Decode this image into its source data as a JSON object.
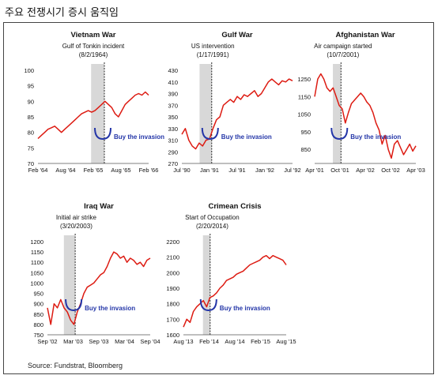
{
  "page_title": "주요 전쟁시기 증시 움직임",
  "source": "Source: Fundstrat, Bloomberg",
  "colors": {
    "line": "#dd1b12",
    "band": "#d8d8d8",
    "bracket": "#2436a8",
    "annotation_text": "#2436a8",
    "text": "#111111"
  },
  "chart_data": [
    {
      "type": "line",
      "title": "Vietnam War",
      "event": {
        "label": "Gulf of Tonkin incident",
        "date": "(8/2/1964)",
        "position": 0.5
      },
      "band": [
        0.48,
        0.6
      ],
      "annotation": "Buy the invasion",
      "y_ticks": [
        70,
        75,
        80,
        85,
        90,
        95,
        100
      ],
      "ylim": [
        70,
        100
      ],
      "x_tick_labels": [
        "Feb '64",
        "Aug '64",
        "Feb '65",
        "Aug '65",
        "Feb '66"
      ],
      "series_values": [
        78,
        79,
        80,
        81,
        81.5,
        82,
        81,
        80,
        81,
        82,
        83,
        84,
        85,
        86,
        86.5,
        87,
        86.5,
        87,
        88,
        89,
        90,
        89,
        88,
        86,
        85,
        87,
        89,
        90,
        91,
        92,
        92.5,
        92,
        93,
        92
      ]
    },
    {
      "type": "line",
      "title": "Gulf War",
      "event": {
        "label": "US intervention",
        "date": "(1/17/1991)",
        "position": 0.28
      },
      "band": [
        0.16,
        0.27
      ],
      "annotation": "Buy the invasion",
      "y_ticks": [
        270,
        290,
        310,
        330,
        350,
        370,
        390,
        410,
        430
      ],
      "ylim": [
        270,
        430
      ],
      "x_tick_labels": [
        "Jul '90",
        "Jan '91",
        "Jul '91",
        "Jan '92",
        "Jul '92"
      ],
      "series_values": [
        320,
        330,
        310,
        300,
        295,
        305,
        300,
        310,
        312,
        330,
        345,
        350,
        370,
        375,
        380,
        375,
        385,
        380,
        388,
        385,
        390,
        395,
        385,
        390,
        400,
        410,
        415,
        410,
        405,
        412,
        410,
        415,
        412
      ]
    },
    {
      "type": "line",
      "title": "Afghanistan War",
      "event": {
        "label": "Air campaign started",
        "date": "(10/7/2001)",
        "position": 0.28
      },
      "band": [
        0.18,
        0.26
      ],
      "annotation": "Buy the invasion",
      "y_ticks": [
        850,
        950,
        1050,
        1150,
        1250
      ],
      "ylim": [
        770,
        1300
      ],
      "x_tick_labels": [
        "Apr '01",
        "Oct '01",
        "Apr '02",
        "Oct '02",
        "Apr '03"
      ],
      "series_values": [
        1150,
        1250,
        1280,
        1250,
        1200,
        1180,
        1200,
        1150,
        1100,
        1080,
        1000,
        1060,
        1110,
        1130,
        1150,
        1170,
        1150,
        1120,
        1100,
        1060,
        1000,
        960,
        880,
        930,
        850,
        800,
        880,
        900,
        860,
        820,
        850,
        880,
        840,
        870
      ]
    },
    {
      "type": "line",
      "title": "Iraq War",
      "event": {
        "label": "Initial air strike",
        "date": "(3/20/2003)",
        "position": 0.28
      },
      "band": [
        0.16,
        0.27
      ],
      "annotation": "Buy the invasion",
      "y_ticks": [
        750,
        800,
        850,
        900,
        950,
        1000,
        1050,
        1100,
        1150,
        1200
      ],
      "ylim": [
        750,
        1200
      ],
      "x_tick_labels": [
        "Sep '02",
        "Mar '03",
        "Sep '03",
        "Mar '04",
        "Sep '04"
      ],
      "series_values": [
        880,
        800,
        900,
        880,
        920,
        880,
        860,
        820,
        800,
        860,
        900,
        950,
        980,
        990,
        1000,
        1020,
        1040,
        1050,
        1080,
        1120,
        1150,
        1140,
        1120,
        1130,
        1100,
        1120,
        1110,
        1090,
        1100,
        1080,
        1110,
        1120
      ]
    },
    {
      "type": "line",
      "title": "Crimean Crisis",
      "event": {
        "label": "Start of Occupation",
        "date": "(2/20/2014)",
        "position": 0.28
      },
      "band": [
        0.19,
        0.26
      ],
      "annotation": "Buy the invasion",
      "y_ticks": [
        1600,
        1700,
        1800,
        1900,
        2000,
        2100,
        2200
      ],
      "ylim": [
        1600,
        2200
      ],
      "x_tick_labels": [
        "Aug '13",
        "Feb '14",
        "Aug '14",
        "Feb '15",
        "Aug '15"
      ],
      "series_values": [
        1650,
        1700,
        1680,
        1750,
        1780,
        1800,
        1820,
        1780,
        1840,
        1850,
        1870,
        1900,
        1920,
        1950,
        1960,
        1970,
        1990,
        2000,
        2010,
        2030,
        2050,
        2060,
        2070,
        2080,
        2100,
        2110,
        2090,
        2110,
        2100,
        2090,
        2080,
        2050
      ]
    }
  ]
}
